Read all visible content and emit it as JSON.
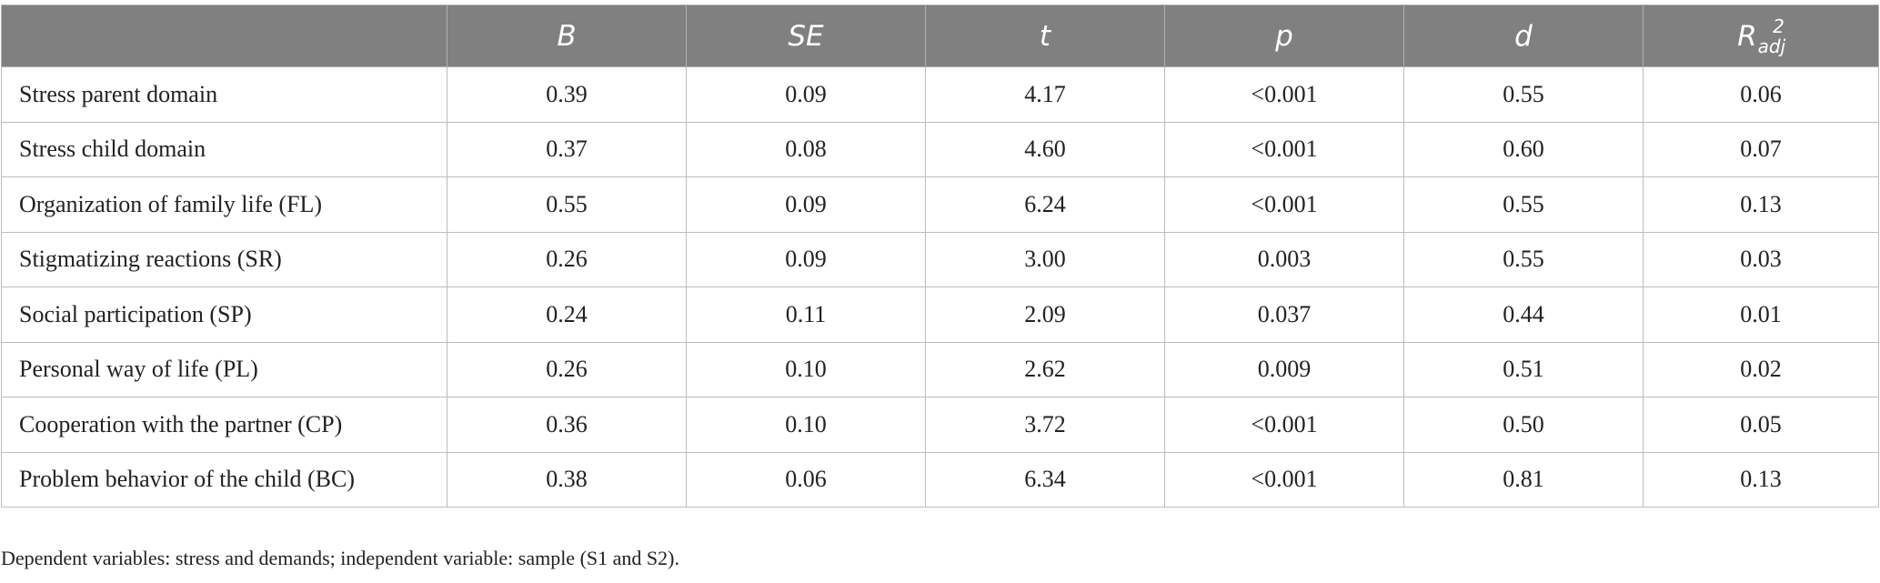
{
  "table": {
    "headers": {
      "B": "B",
      "SE": "SE",
      "t": "t",
      "p": "p",
      "d": "d",
      "R": "R",
      "R_sub": "adj",
      "R_sup": "2"
    },
    "rows": [
      {
        "label": "Stress parent domain",
        "B": "0.39",
        "SE": "0.09",
        "t": "4.17",
        "p": "<0.001",
        "d": "0.55",
        "R2": "0.06"
      },
      {
        "label": "Stress child domain",
        "B": "0.37",
        "SE": "0.08",
        "t": "4.60",
        "p": "<0.001",
        "d": "0.60",
        "R2": "0.07"
      },
      {
        "label": "Organization of family life (FL)",
        "B": "0.55",
        "SE": "0.09",
        "t": "6.24",
        "p": "<0.001",
        "d": "0.55",
        "R2": "0.13"
      },
      {
        "label": "Stigmatizing reactions (SR)",
        "B": "0.26",
        "SE": "0.09",
        "t": "3.00",
        "p": "0.003",
        "d": "0.55",
        "R2": "0.03"
      },
      {
        "label": "Social participation (SP)",
        "B": "0.24",
        "SE": "0.11",
        "t": "2.09",
        "p": "0.037",
        "d": "0.44",
        "R2": "0.01"
      },
      {
        "label": "Personal way of life (PL)",
        "B": "0.26",
        "SE": "0.10",
        "t": "2.62",
        "p": "0.009",
        "d": "0.51",
        "R2": "0.02"
      },
      {
        "label": "Cooperation with the partner (CP)",
        "B": "0.36",
        "SE": "0.10",
        "t": "3.72",
        "p": "<0.001",
        "d": "0.50",
        "R2": "0.05"
      },
      {
        "label": "Problem behavior of the child (BC)",
        "B": "0.38",
        "SE": "0.06",
        "t": "6.34",
        "p": "<0.001",
        "d": "0.81",
        "R2": "0.13"
      }
    ]
  },
  "footnote": "Dependent variables: stress and demands; independent variable: sample (S1 and S2)."
}
